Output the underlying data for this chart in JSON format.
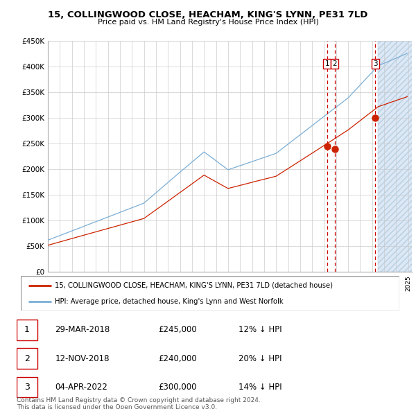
{
  "title1": "15, COLLINGWOOD CLOSE, HEACHAM, KING'S LYNN, PE31 7LD",
  "title2": "Price paid vs. HM Land Registry's House Price Index (HPI)",
  "legend_red": "15, COLLINGWOOD CLOSE, HEACHAM, KING'S LYNN, PE31 7LD (detached house)",
  "legend_blue": "HPI: Average price, detached house, King's Lynn and West Norfolk",
  "footer1": "Contains HM Land Registry data © Crown copyright and database right 2024.",
  "footer2": "This data is licensed under the Open Government Licence v3.0.",
  "transactions": [
    {
      "label": "1",
      "date": "29-MAR-2018",
      "price": "£245,000",
      "pct": "12% ↓ HPI"
    },
    {
      "label": "2",
      "date": "12-NOV-2018",
      "price": "£240,000",
      "pct": "20% ↓ HPI"
    },
    {
      "label": "3",
      "date": "04-APR-2022",
      "price": "£300,000",
      "pct": "14% ↓ HPI"
    }
  ],
  "trans_dates_num": [
    2018.24,
    2018.87,
    2022.26
  ],
  "trans_prices": [
    245000,
    240000,
    300000
  ],
  "hpi_color": "#7aaed6",
  "red_color": "#cc2200",
  "grid_color": "#cccccc",
  "future_shade_color": "#dce8f5"
}
